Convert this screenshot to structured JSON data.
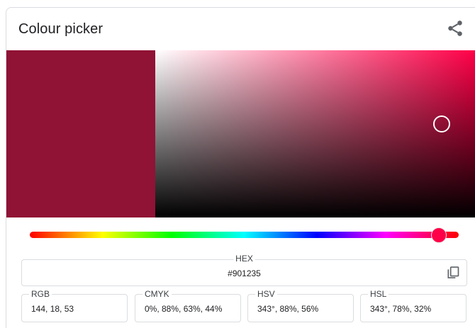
{
  "title": "Colour picker",
  "icons": {
    "share": "share-icon",
    "copy": "copy-icon"
  },
  "colors": {
    "selected": "#901235",
    "hue": "#ff0048"
  },
  "hue_degrees": 343,
  "saturation_value": {
    "saturation": 0.88,
    "value": 0.56
  },
  "hex": {
    "label": "HEX",
    "value": "#901235"
  },
  "rgb": {
    "label": "RGB",
    "value": "144, 18, 53"
  },
  "cmyk": {
    "label": "CMYK",
    "value": "0%, 88%, 63%, 44%"
  },
  "hsv": {
    "label": "HSV",
    "value": "343°, 88%, 56%"
  },
  "hsl": {
    "label": "HSL",
    "value": "343°, 78%, 32%"
  }
}
